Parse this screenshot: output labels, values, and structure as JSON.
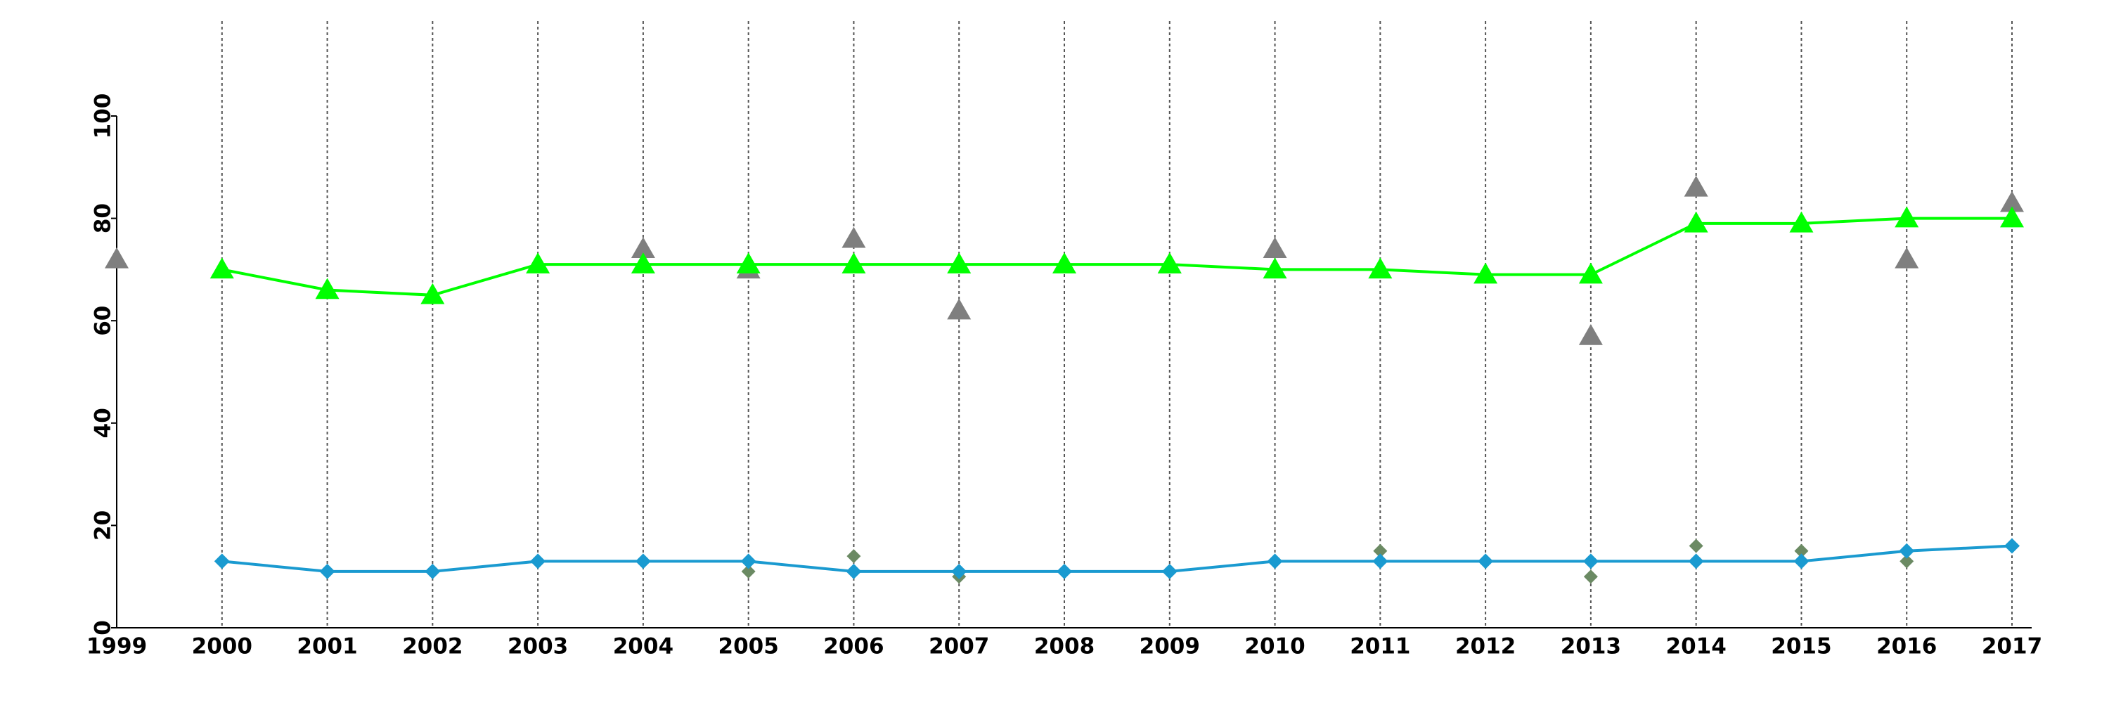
{
  "chart_data": {
    "type": "line",
    "x": [
      1999,
      2000,
      2001,
      2002,
      2003,
      2004,
      2005,
      2006,
      2007,
      2008,
      2009,
      2010,
      2011,
      2012,
      2013,
      2014,
      2015,
      2016,
      2017
    ],
    "xlim": [
      1999,
      2017
    ],
    "xticks": [
      1999,
      2000,
      2001,
      2002,
      2003,
      2004,
      2005,
      2006,
      2007,
      2008,
      2009,
      2010,
      2011,
      2012,
      2013,
      2014,
      2015,
      2016,
      2017
    ],
    "ylim": [
      0,
      100
    ],
    "yticks": [
      0,
      20,
      40,
      60,
      80,
      100
    ],
    "grid": "x",
    "series": [
      {
        "color": "#7f7f7f",
        "marker": "triangle",
        "line": false,
        "values": [
          72,
          null,
          null,
          null,
          null,
          74,
          70,
          76,
          62,
          null,
          71,
          74,
          null,
          null,
          57,
          86,
          null,
          72,
          83
        ]
      },
      {
        "color": "#00ff00",
        "marker": "triangle",
        "line": true,
        "values": [
          null,
          70,
          66,
          65,
          71,
          71,
          71,
          71,
          71,
          71,
          71,
          70,
          70,
          69,
          69,
          79,
          79,
          80,
          80
        ]
      },
      {
        "color": "#6b8a63",
        "marker": "diamond",
        "line": false,
        "values": [
          null,
          null,
          null,
          null,
          null,
          null,
          11,
          14,
          10,
          null,
          null,
          null,
          15,
          null,
          10,
          16,
          15,
          13,
          null
        ]
      },
      {
        "color": "#1a9ad0",
        "marker": "diamond",
        "line": true,
        "values": [
          null,
          13,
          11,
          11,
          13,
          13,
          13,
          11,
          11,
          11,
          11,
          13,
          13,
          13,
          13,
          13,
          13,
          15,
          16
        ]
      }
    ]
  }
}
